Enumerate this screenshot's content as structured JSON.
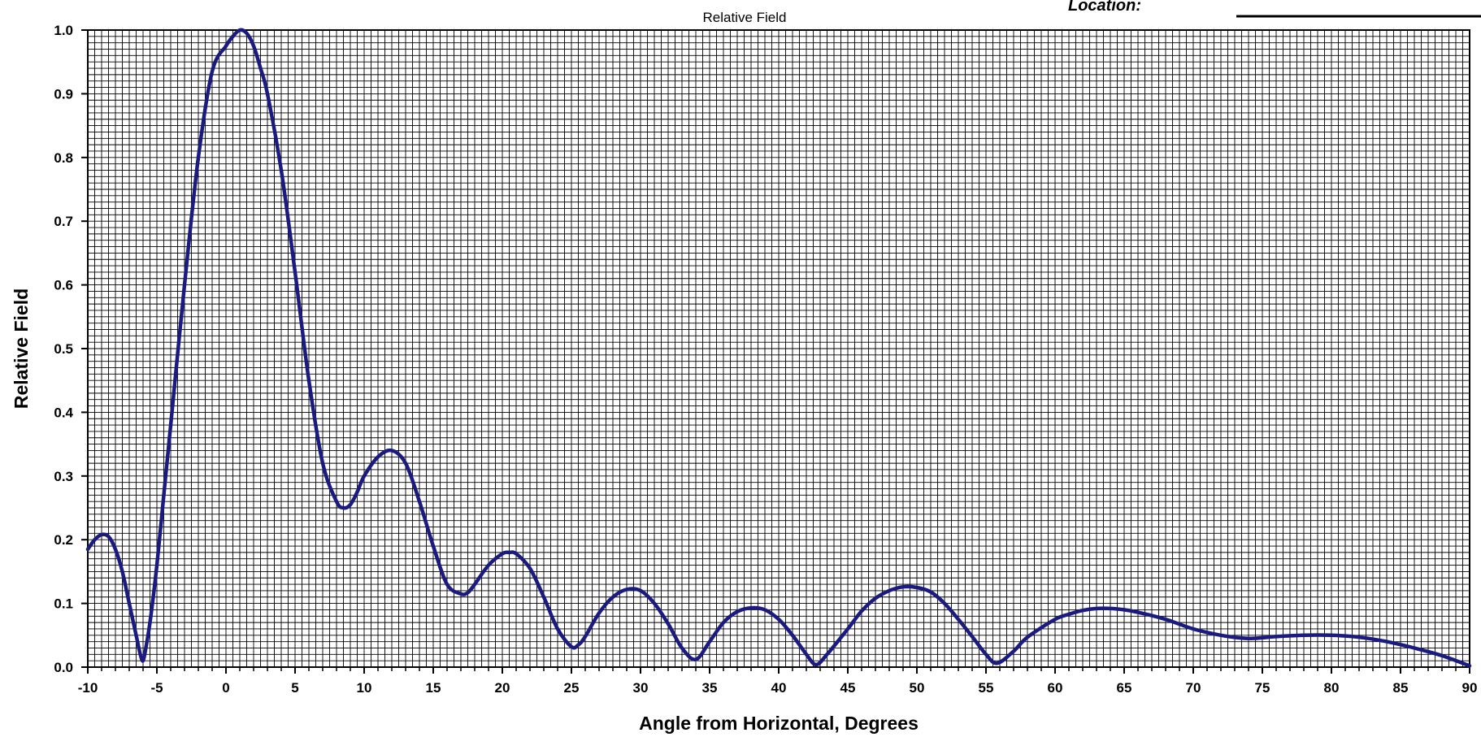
{
  "header": {
    "location_label": "Location:"
  },
  "chart_data": {
    "type": "line",
    "title": "Relative Field",
    "xlabel": "Angle from Horizontal, Degrees",
    "ylabel": "Relative Field",
    "xlim": [
      -10,
      90
    ],
    "ylim": [
      0,
      1.0
    ],
    "grid": true,
    "xticks": [
      "-10",
      "-5",
      "0",
      "5",
      "10",
      "15",
      "20",
      "25",
      "30",
      "35",
      "40",
      "45",
      "50",
      "55",
      "60",
      "65",
      "70",
      "75",
      "80",
      "85",
      "90"
    ],
    "yticks": [
      "0.0",
      "0.1",
      "0.2",
      "0.3",
      "0.4",
      "0.5",
      "0.6",
      "0.7",
      "0.8",
      "0.9",
      "1.0"
    ],
    "colors": {
      "line": "#1a1a80",
      "grid": "#000000"
    },
    "series": [
      {
        "x": [
          -10,
          -9.5,
          -9,
          -8.5,
          -8,
          -7.5,
          -7,
          -6.5,
          -6.2,
          -6,
          -5.8,
          -5.5,
          -5,
          -4.5,
          -4,
          -3,
          -2,
          -1,
          0,
          0.5,
          1,
          1.5,
          2,
          2.5,
          3,
          4,
          5,
          6,
          7,
          8,
          8.5,
          9,
          9.5,
          10,
          11,
          12,
          13,
          14,
          15,
          16,
          17,
          17.5,
          18,
          19,
          20,
          20.5,
          21,
          22,
          23,
          24,
          25,
          25.5,
          26,
          27,
          28,
          29,
          30,
          31,
          32,
          33,
          34,
          35,
          36,
          37,
          38,
          39,
          40,
          41,
          42,
          42.7,
          43.5,
          45,
          46,
          47,
          48,
          49,
          50,
          51,
          52,
          53,
          54,
          55,
          55.8,
          57,
          58,
          60,
          61,
          62,
          63,
          64,
          65,
          66,
          68,
          70,
          72,
          74,
          76,
          78,
          80,
          82,
          84,
          86,
          88,
          90
        ],
        "y": [
          0.185,
          0.2,
          0.208,
          0.205,
          0.185,
          0.15,
          0.1,
          0.05,
          0.02,
          0.01,
          0.03,
          0.07,
          0.16,
          0.27,
          0.38,
          0.6,
          0.8,
          0.935,
          0.975,
          0.99,
          1.0,
          0.995,
          0.975,
          0.94,
          0.9,
          0.78,
          0.62,
          0.45,
          0.32,
          0.26,
          0.25,
          0.255,
          0.275,
          0.3,
          0.33,
          0.34,
          0.32,
          0.26,
          0.19,
          0.13,
          0.115,
          0.117,
          0.13,
          0.16,
          0.178,
          0.18,
          0.178,
          0.155,
          0.11,
          0.06,
          0.032,
          0.035,
          0.048,
          0.085,
          0.11,
          0.122,
          0.12,
          0.1,
          0.068,
          0.03,
          0.012,
          0.04,
          0.07,
          0.087,
          0.093,
          0.09,
          0.075,
          0.05,
          0.02,
          0.004,
          0.02,
          0.06,
          0.088,
          0.108,
          0.12,
          0.126,
          0.125,
          0.118,
          0.1,
          0.075,
          0.048,
          0.02,
          0.006,
          0.025,
          0.047,
          0.075,
          0.083,
          0.089,
          0.092,
          0.092,
          0.09,
          0.086,
          0.075,
          0.06,
          0.05,
          0.045,
          0.048,
          0.05,
          0.05,
          0.047,
          0.04,
          0.03,
          0.018,
          0.002
        ]
      }
    ]
  }
}
